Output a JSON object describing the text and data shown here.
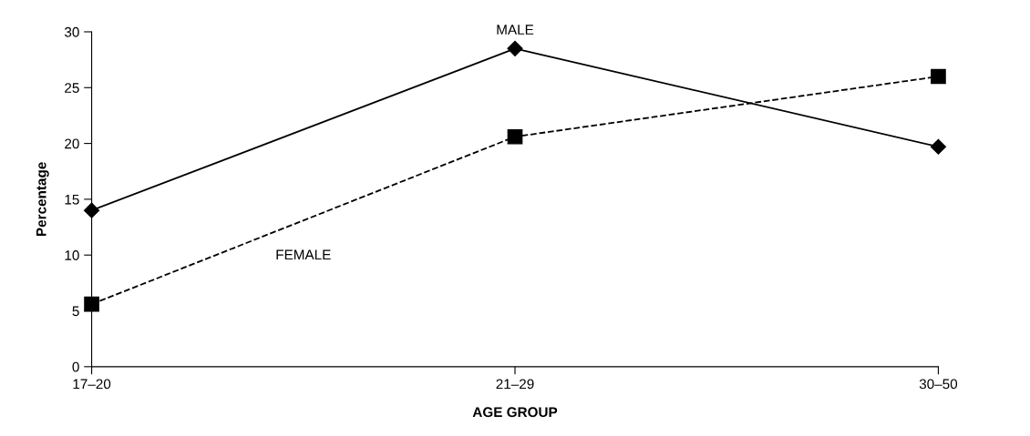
{
  "chart_data": {
    "type": "line",
    "xlabel": "AGE GROUP",
    "ylabel": "Percentage",
    "categories": [
      "17–20",
      "21–29",
      "30–50"
    ],
    "series": [
      {
        "name": "MALE",
        "color": "#000000",
        "values": [
          14.0,
          28.5,
          19.7
        ],
        "marker": "diamond",
        "line_style": "solid"
      },
      {
        "name": "FEMALE",
        "color": "#000000",
        "values": [
          5.6,
          20.6,
          26.0
        ],
        "marker": "square",
        "line_style": "dashed"
      }
    ],
    "ylim": [
      0,
      30
    ],
    "yticks": [
      0,
      5,
      10,
      15,
      20,
      25,
      30
    ],
    "grid": false,
    "legend": false
  }
}
